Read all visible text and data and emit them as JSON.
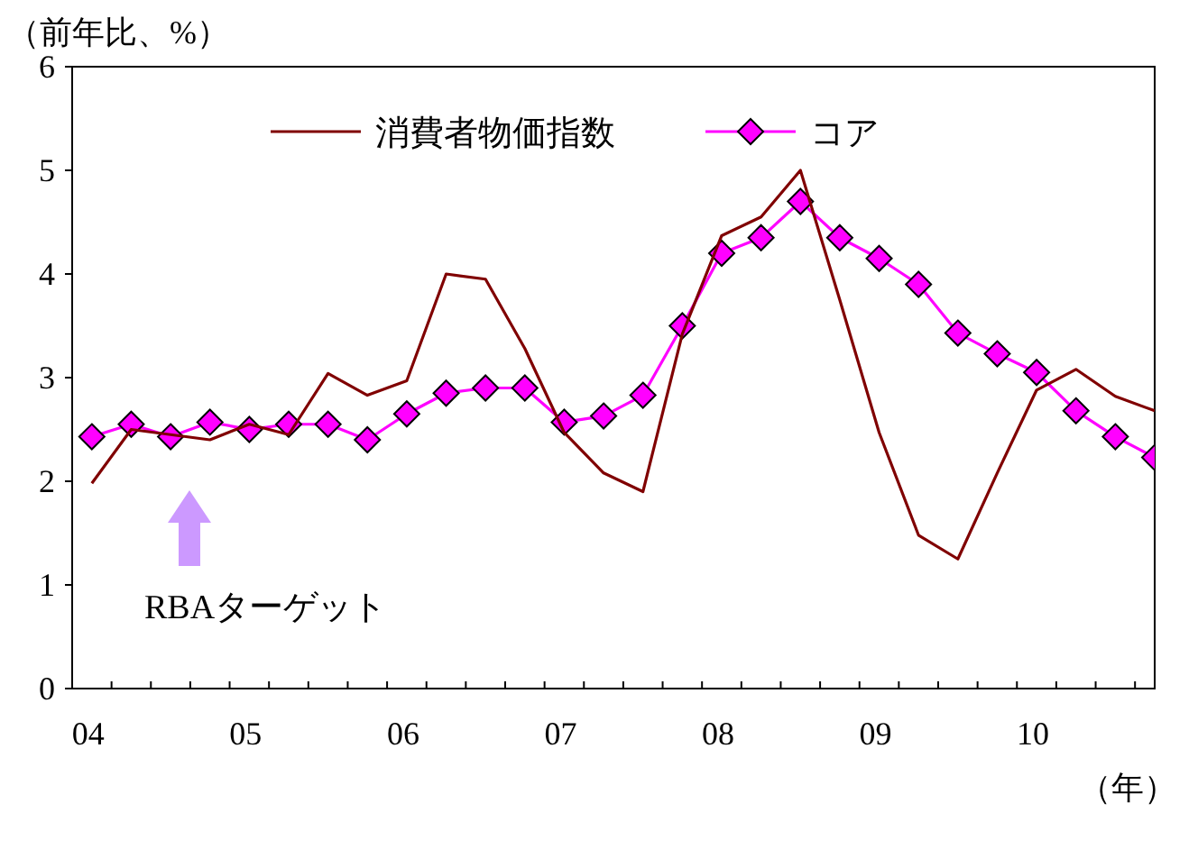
{
  "chart_data": {
    "type": "line",
    "ylabel": "（前年比、%）",
    "xlabel": "（年）",
    "categories": [
      "04",
      null,
      null,
      null,
      "05",
      null,
      null,
      null,
      "06",
      null,
      null,
      null,
      "07",
      null,
      null,
      null,
      "08",
      null,
      null,
      null,
      "09",
      null,
      null,
      null,
      "10",
      null,
      null,
      null
    ],
    "series": [
      {
        "name": "消費者物価指数",
        "color": "#800000",
        "marker": "none",
        "values": [
          1.98,
          2.5,
          2.45,
          2.4,
          2.55,
          2.45,
          3.04,
          2.83,
          2.97,
          4.0,
          3.95,
          3.28,
          2.47,
          2.08,
          1.9,
          3.42,
          4.37,
          4.55,
          5.0,
          3.75,
          2.47,
          1.48,
          1.25,
          2.08,
          2.88,
          3.08,
          2.82,
          2.68
        ]
      },
      {
        "name": "コア",
        "color": "#ff00ff",
        "marker": "diamond",
        "values": [
          2.43,
          2.55,
          2.43,
          2.57,
          2.5,
          2.55,
          2.55,
          2.4,
          2.65,
          2.85,
          2.9,
          2.9,
          2.57,
          2.63,
          2.83,
          3.5,
          4.2,
          4.35,
          4.7,
          4.35,
          4.15,
          3.9,
          3.43,
          3.23,
          3.05,
          2.68,
          2.43,
          2.23
        ]
      }
    ],
    "ylim": [
      0,
      6
    ],
    "yticks": [
      0,
      1,
      2,
      3,
      4,
      5,
      6
    ],
    "grid": false,
    "legend": "top",
    "annotations": [
      "RBAターゲット"
    ]
  }
}
